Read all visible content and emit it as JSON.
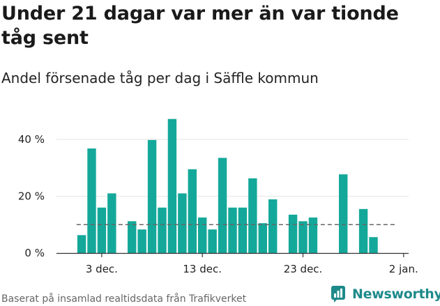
{
  "header": {
    "title": "Under 21 dagar var mer än var tionde tåg sent",
    "subtitle": "Andel försenade tåg per dag i Säffle kommun"
  },
  "footer": {
    "source": "Baserat på insamlad realtidsdata från Trafikverket",
    "logo_text": "Newsworthy",
    "logo_icon": "newsworthy-logo-icon"
  },
  "colors": {
    "bar": "#14a89a",
    "reference_line": "#666666",
    "grid": "#e6e6e6",
    "axis": "#333333",
    "logo": "#1e8a8a"
  },
  "chart_data": {
    "type": "bar",
    "title": "Andel försenade tåg per dag i Säffle kommun",
    "xlabel": "",
    "ylabel": "",
    "x_unit": "day",
    "x": [
      1,
      2,
      3,
      4,
      6,
      7,
      8,
      9,
      10,
      11,
      12,
      13,
      14,
      15,
      16,
      17,
      18,
      19,
      20,
      22,
      23,
      24,
      27,
      29,
      30
    ],
    "values": [
      6.3,
      36.8,
      16,
      21,
      11.2,
      8.3,
      39.8,
      16,
      47.2,
      21,
      29.5,
      12.5,
      8.3,
      33.5,
      16,
      16,
      26.3,
      10.5,
      18.9,
      13.5,
      11.2,
      12.5,
      27.7,
      15.5,
      5.6
    ],
    "reference_line": {
      "value": 10,
      "style": "dashed"
    },
    "xlim": [
      -1.5,
      33.5
    ],
    "x_ticks": [
      {
        "value": 3,
        "label": "3 dec."
      },
      {
        "value": 13,
        "label": "13 dec."
      },
      {
        "value": 23,
        "label": "23 dec."
      },
      {
        "value": 33,
        "label": "2 jan."
      }
    ],
    "ylim": [
      0,
      50
    ],
    "y_ticks": [
      {
        "value": 0,
        "label": "0 %"
      },
      {
        "value": 20,
        "label": "20 %"
      },
      {
        "value": 40,
        "label": "40 %"
      }
    ],
    "grid": true,
    "legend": "none"
  }
}
